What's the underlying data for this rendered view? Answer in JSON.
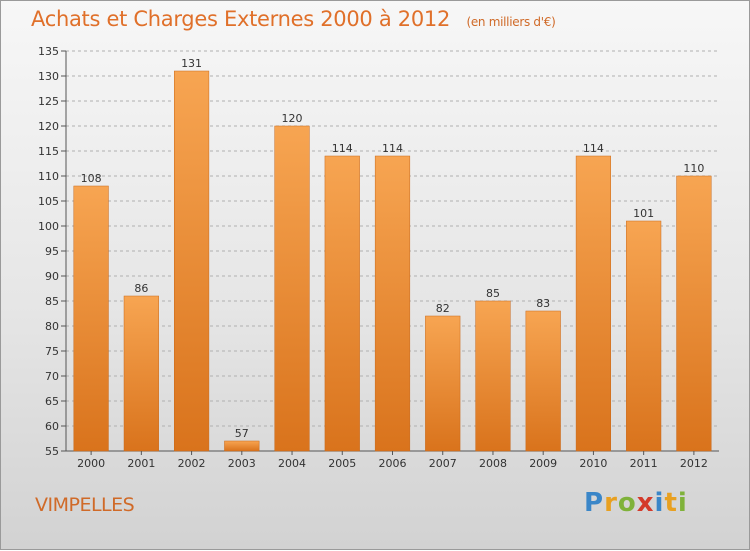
{
  "header": {
    "title": "Achats et Charges Externes 2000 à 2012",
    "subtitle": "(en milliers d'€)"
  },
  "footer": {
    "commune": "VIMPELLES",
    "logo_text": "Proxiti"
  },
  "colors": {
    "bar_top": "#f7a552",
    "bar_bottom": "#d9731c",
    "title": "#e0702a",
    "axis": "#555555",
    "grid": "#b0b0b0"
  },
  "chart_data": {
    "type": "bar",
    "title": "Achats et Charges Externes 2000 à 2012",
    "subtitle": "(en milliers d'€)",
    "categories": [
      "2000",
      "2001",
      "2002",
      "2003",
      "2004",
      "2005",
      "2006",
      "2007",
      "2008",
      "2009",
      "2010",
      "2011",
      "2012"
    ],
    "values": [
      108,
      86,
      131,
      57,
      120,
      114,
      114,
      82,
      85,
      83,
      114,
      101,
      110
    ],
    "ylim": [
      55,
      135
    ],
    "yticks": [
      55,
      60,
      65,
      70,
      75,
      80,
      85,
      90,
      95,
      100,
      105,
      110,
      115,
      120,
      125,
      130,
      135
    ],
    "grid": true,
    "xlabel": "",
    "ylabel": ""
  }
}
